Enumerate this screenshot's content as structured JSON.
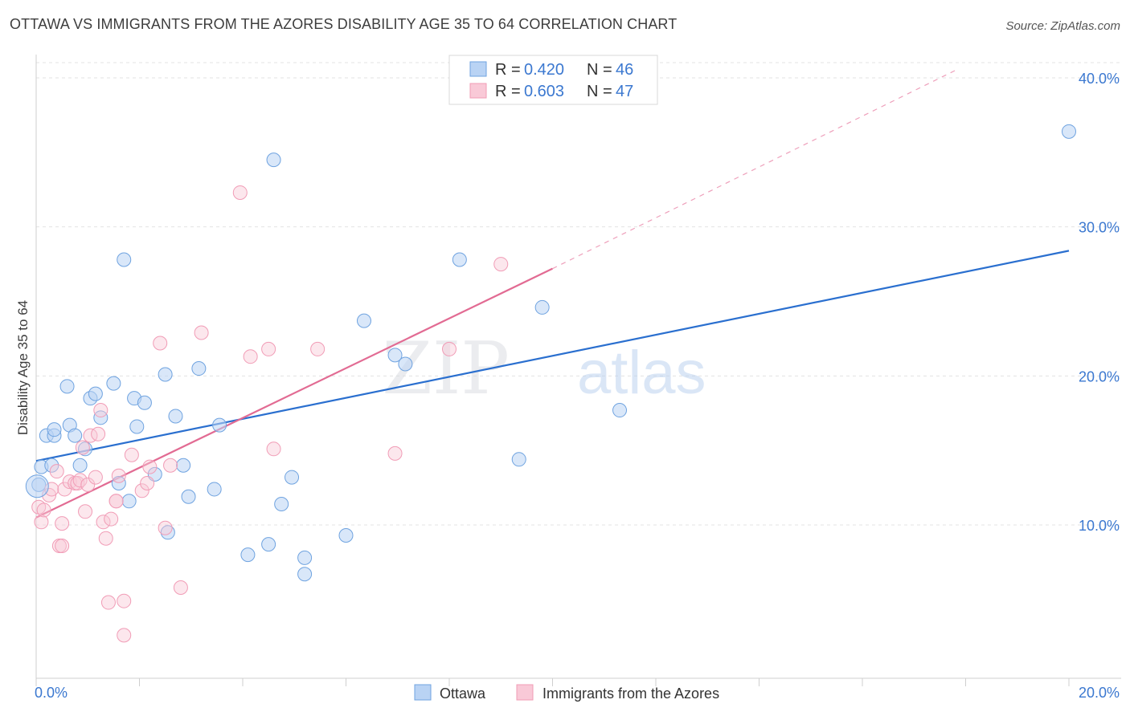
{
  "title": "OTTAWA VS IMMIGRANTS FROM THE AZORES DISABILITY AGE 35 TO 64 CORRELATION CHART",
  "source": "Source: ZipAtlas.com",
  "watermark": {
    "part1": "ZIP",
    "part2": "atlas"
  },
  "legend_top": {
    "rows": [
      {
        "r_label": "R = ",
        "r_value": "0.420",
        "n_label": "N = ",
        "n_value": "46"
      },
      {
        "r_label": "R = ",
        "r_value": "0.603",
        "n_label": "N = ",
        "n_value": "47"
      }
    ]
  },
  "legend_bottom": {
    "items": [
      "Ottawa",
      "Immigrants from the Azores"
    ]
  },
  "chart_data": {
    "type": "scatter",
    "title": "OTTAWA VS IMMIGRANTS FROM THE AZORES DISABILITY AGE 35 TO 64 CORRELATION CHART",
    "xlabel": "",
    "ylabel": "Disability Age 35 to 64",
    "xlim": [
      0,
      20
    ],
    "ylim": [
      0,
      40
    ],
    "x_tick_labels": [
      "0.0%",
      "20.0%"
    ],
    "y_tick_values": [
      10,
      20,
      30,
      40
    ],
    "y_tick_labels": [
      "10.0%",
      "20.0%",
      "30.0%",
      "40.0%"
    ],
    "colors": {
      "ottawa": "#6fa3e0",
      "azores": "#f19cb6",
      "ottawa_line": "#2a6fcf",
      "azores_line": "#e26b93",
      "axis_text": "#3b78d0"
    },
    "series": [
      {
        "name": "Ottawa",
        "r": 0.42,
        "n": 46,
        "trend": {
          "x0": 0.0,
          "y0": 14.3,
          "x1": 20.0,
          "y1": 28.4
        },
        "points": [
          [
            0.05,
            12.7
          ],
          [
            0.1,
            13.9
          ],
          [
            0.2,
            16.0
          ],
          [
            0.35,
            16.0
          ],
          [
            0.35,
            16.4
          ],
          [
            0.6,
            19.3
          ],
          [
            0.65,
            16.7
          ],
          [
            0.75,
            16.0
          ],
          [
            0.85,
            14.0
          ],
          [
            0.95,
            15.1
          ],
          [
            1.05,
            18.5
          ],
          [
            1.15,
            18.8
          ],
          [
            1.25,
            17.2
          ],
          [
            1.5,
            19.5
          ],
          [
            1.6,
            12.8
          ],
          [
            1.7,
            27.8
          ],
          [
            1.8,
            11.6
          ],
          [
            1.9,
            18.5
          ],
          [
            1.95,
            16.6
          ],
          [
            2.1,
            18.2
          ],
          [
            2.3,
            13.4
          ],
          [
            2.5,
            20.1
          ],
          [
            2.55,
            9.5
          ],
          [
            2.7,
            17.3
          ],
          [
            2.85,
            14.0
          ],
          [
            2.95,
            11.9
          ],
          [
            3.15,
            20.5
          ],
          [
            3.45,
            12.4
          ],
          [
            3.55,
            16.7
          ],
          [
            4.1,
            8.0
          ],
          [
            4.5,
            8.7
          ],
          [
            4.6,
            34.5
          ],
          [
            4.75,
            11.4
          ],
          [
            4.95,
            13.2
          ],
          [
            5.2,
            7.8
          ],
          [
            5.2,
            6.7
          ],
          [
            6.0,
            9.3
          ],
          [
            6.35,
            23.7
          ],
          [
            6.95,
            21.4
          ],
          [
            7.15,
            20.8
          ],
          [
            8.2,
            27.8
          ],
          [
            9.35,
            14.4
          ],
          [
            9.8,
            24.6
          ],
          [
            11.3,
            17.7
          ],
          [
            20.0,
            36.4
          ],
          [
            0.3,
            14.0
          ]
        ]
      },
      {
        "name": "Immigrants from the Azores",
        "r": 0.603,
        "n": 47,
        "trend": {
          "x0": 0.0,
          "y0": 10.5,
          "x1": 10.0,
          "y1": 27.2
        },
        "trend_extension": {
          "x0": 10.0,
          "y0": 27.2,
          "x1": 17.8,
          "y1": 40.5
        },
        "points": [
          [
            0.05,
            11.2
          ],
          [
            0.1,
            10.2
          ],
          [
            0.15,
            11.0
          ],
          [
            0.25,
            12.0
          ],
          [
            0.3,
            12.4
          ],
          [
            0.4,
            13.6
          ],
          [
            0.45,
            8.6
          ],
          [
            0.5,
            10.1
          ],
          [
            0.55,
            12.4
          ],
          [
            0.65,
            12.9
          ],
          [
            0.75,
            12.8
          ],
          [
            0.8,
            12.8
          ],
          [
            0.85,
            13.0
          ],
          [
            0.9,
            15.2
          ],
          [
            0.95,
            10.9
          ],
          [
            1.0,
            12.7
          ],
          [
            1.05,
            16.0
          ],
          [
            1.15,
            13.2
          ],
          [
            1.2,
            16.1
          ],
          [
            1.25,
            17.7
          ],
          [
            1.3,
            10.2
          ],
          [
            1.35,
            9.1
          ],
          [
            1.4,
            4.8
          ],
          [
            1.45,
            10.4
          ],
          [
            1.55,
            11.6
          ],
          [
            1.6,
            13.3
          ],
          [
            1.7,
            4.9
          ],
          [
            1.7,
            2.6
          ],
          [
            1.85,
            14.7
          ],
          [
            2.05,
            12.3
          ],
          [
            2.15,
            12.8
          ],
          [
            2.2,
            13.9
          ],
          [
            2.4,
            22.2
          ],
          [
            2.5,
            9.8
          ],
          [
            2.6,
            14.0
          ],
          [
            2.8,
            5.8
          ],
          [
            3.2,
            22.9
          ],
          [
            3.95,
            32.3
          ],
          [
            4.15,
            21.3
          ],
          [
            4.5,
            21.8
          ],
          [
            4.6,
            15.1
          ],
          [
            5.45,
            21.8
          ],
          [
            6.95,
            14.8
          ],
          [
            8.0,
            21.8
          ],
          [
            9.0,
            27.5
          ],
          [
            0.5,
            8.6
          ],
          [
            1.55,
            11.6
          ]
        ]
      }
    ]
  }
}
